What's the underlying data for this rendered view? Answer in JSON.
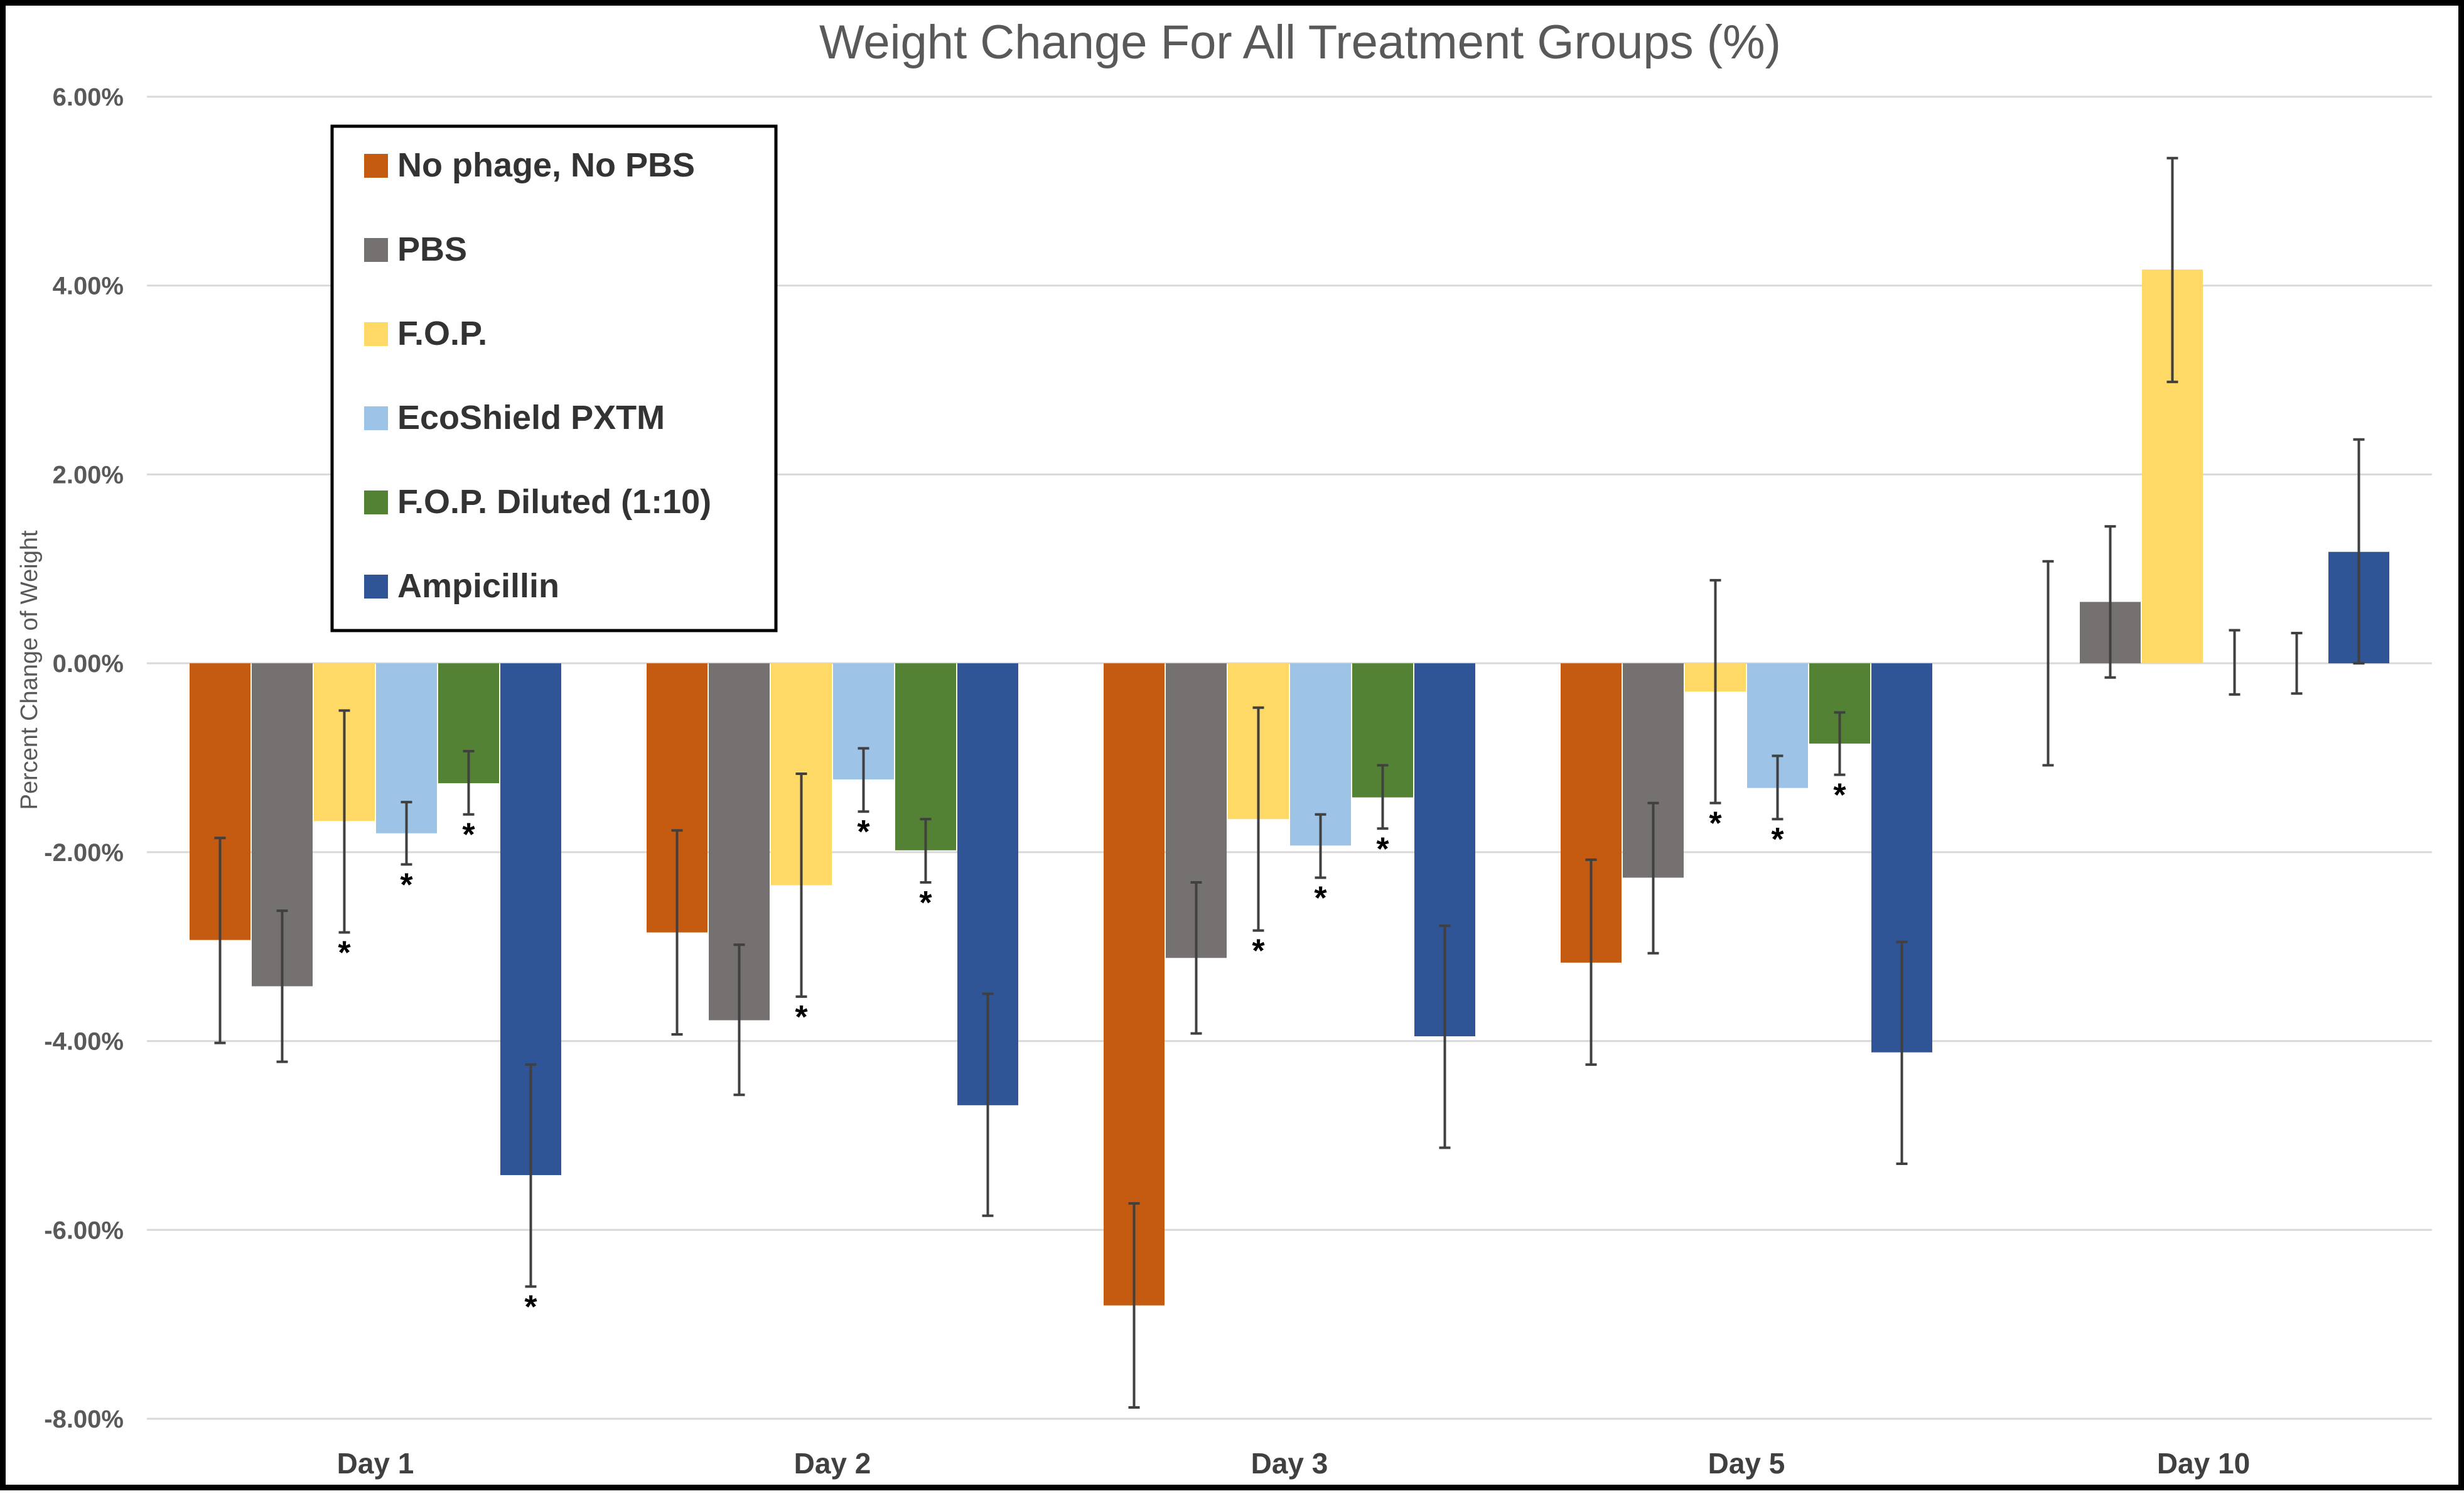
{
  "chart_data": {
    "type": "bar",
    "title": "Weight Change For All Treatment Groups (%)",
    "xlabel": "",
    "ylabel": "Percent Change of Weight",
    "ylim": [
      -8,
      6
    ],
    "yticks": [
      6,
      4,
      2,
      0,
      -2,
      -4,
      -6,
      -8
    ],
    "ytick_labels": [
      "6.00%",
      "4.00%",
      "2.00%",
      "0.00%",
      "-2.00%",
      "-4.00%",
      "-6.00%",
      "-8.00%"
    ],
    "grid": true,
    "legend_position": "top-left",
    "categories": [
      "Day 1",
      "Day 2",
      "Day 3",
      "Day 5",
      "Day 10"
    ],
    "significance_marker": "*",
    "series": [
      {
        "name": "No phage, No PBS",
        "color": "#C55A11",
        "values": [
          -2.93,
          -2.85,
          -6.8,
          -3.17,
          0.0
        ],
        "error_low": [
          -4.02,
          -3.93,
          -7.88,
          -4.25,
          -1.08
        ],
        "error_high": [
          -1.85,
          -1.77,
          -5.72,
          -2.08,
          1.08
        ],
        "significant": [
          false,
          false,
          false,
          false,
          false
        ]
      },
      {
        "name": "PBS",
        "color": "#767171",
        "values": [
          -3.42,
          -3.78,
          -3.12,
          -2.27,
          0.65
        ],
        "error_low": [
          -4.22,
          -4.57,
          -3.92,
          -3.07,
          -0.15
        ],
        "error_high": [
          -2.62,
          -2.98,
          -2.32,
          -1.48,
          1.45
        ],
        "significant": [
          false,
          false,
          false,
          false,
          false
        ]
      },
      {
        "name": "F.O.P.",
        "color": "#FFD966",
        "values": [
          -1.67,
          -2.35,
          -1.65,
          -0.3,
          4.17
        ],
        "error_low": [
          -2.85,
          -3.53,
          -2.83,
          -1.48,
          2.98
        ],
        "error_high": [
          -0.5,
          -1.17,
          -0.47,
          0.88,
          5.35
        ],
        "significant": [
          true,
          true,
          true,
          true,
          false
        ]
      },
      {
        "name": "EcoShield PXTM",
        "color": "#9DC3E6",
        "values": [
          -1.8,
          -1.23,
          -1.93,
          -1.32,
          0.0
        ],
        "error_low": [
          -2.13,
          -1.57,
          -2.27,
          -1.65,
          -0.33
        ],
        "error_high": [
          -1.47,
          -0.9,
          -1.6,
          -0.98,
          0.35
        ],
        "significant": [
          true,
          true,
          true,
          true,
          false
        ]
      },
      {
        "name": "F.O.P. Diluted (1:10)",
        "color": "#548235",
        "values": [
          -1.27,
          -1.98,
          -1.42,
          -0.85,
          0.0
        ],
        "error_low": [
          -1.6,
          -2.32,
          -1.75,
          -1.18,
          -0.32
        ],
        "error_high": [
          -0.93,
          -1.65,
          -1.08,
          -0.52,
          0.32
        ],
        "significant": [
          true,
          true,
          true,
          true,
          false
        ]
      },
      {
        "name": "Ampicillin",
        "color": "#2F5597",
        "values": [
          -5.42,
          -4.68,
          -3.95,
          -4.12,
          1.18
        ],
        "error_low": [
          -6.6,
          -5.85,
          -5.13,
          -5.3,
          0.0
        ],
        "error_high": [
          -4.25,
          -3.5,
          -2.78,
          -2.95,
          2.37
        ],
        "significant": [
          true,
          false,
          false,
          false,
          false
        ]
      }
    ]
  }
}
